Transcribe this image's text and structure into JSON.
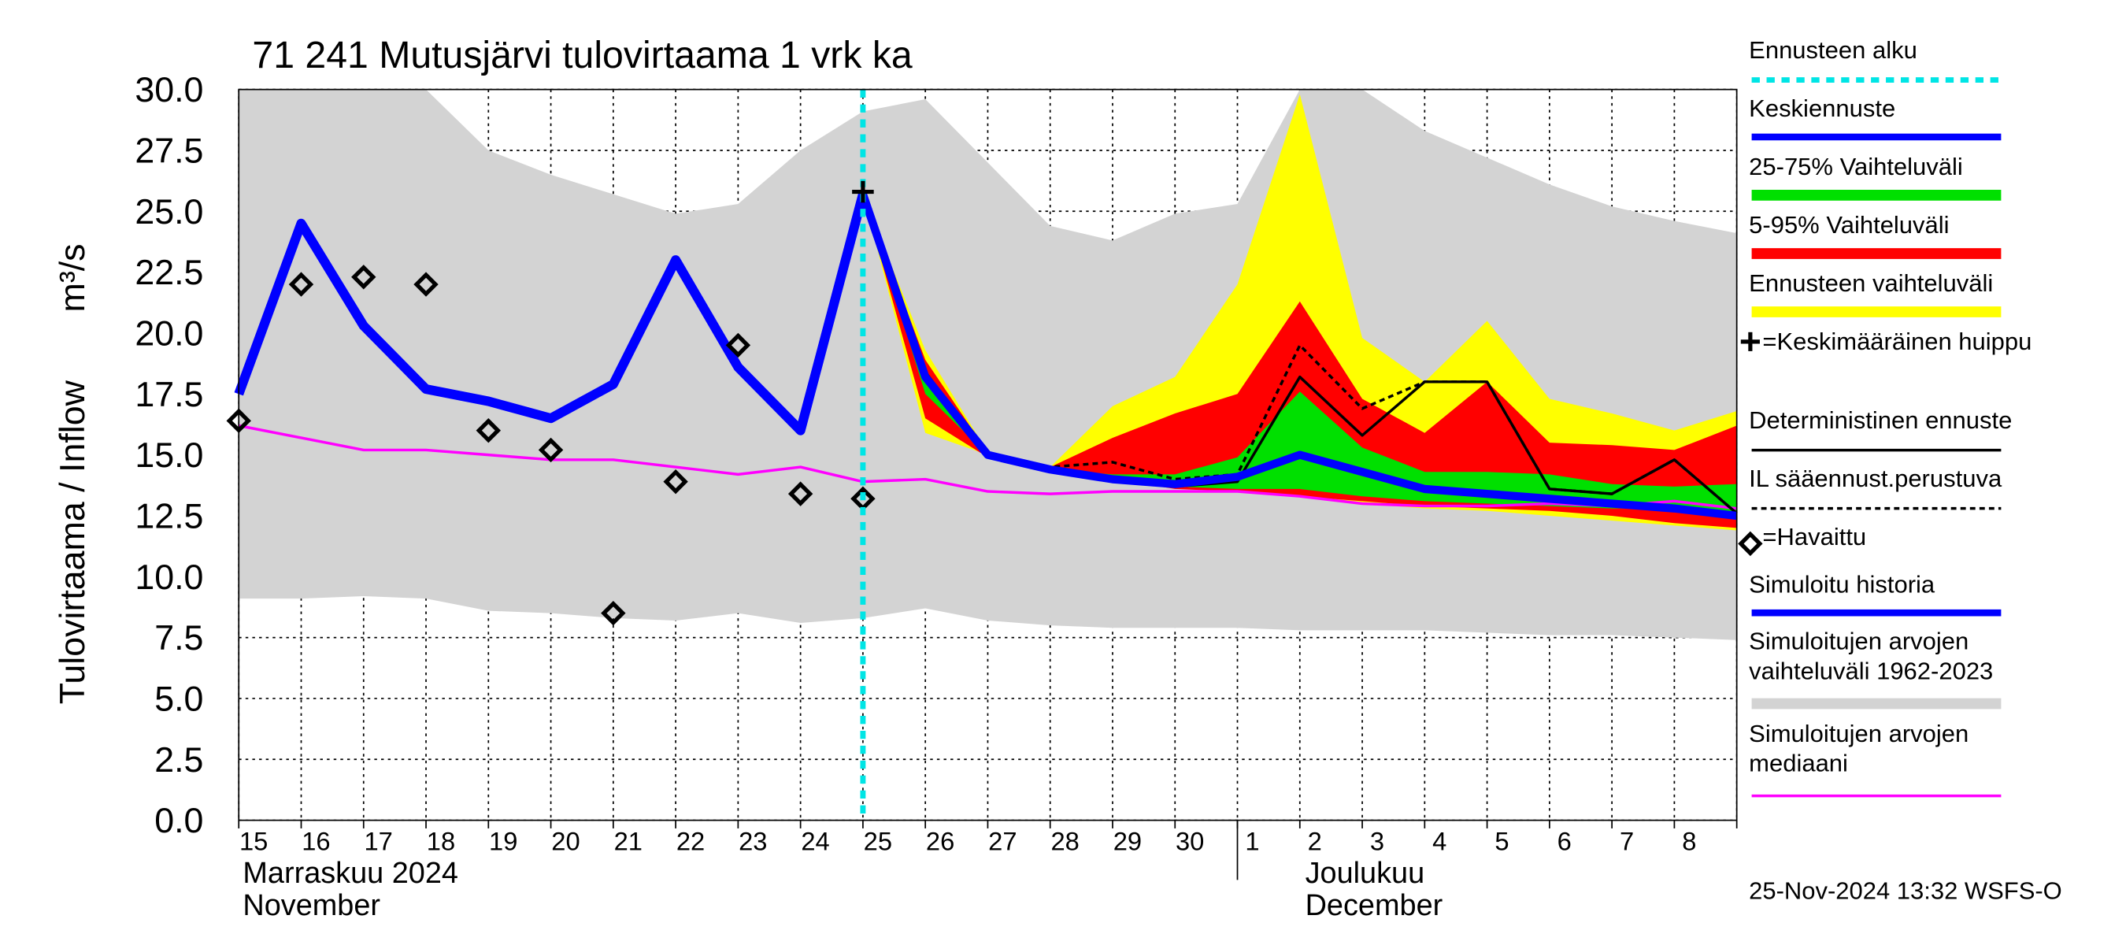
{
  "chart_data": {
    "type": "forecast",
    "title": "71 241 Mutusjärvi tulovirtaama 1 vrk ka",
    "y_label": "Tulovirtaama / Inflow",
    "y_unit": "m³/s",
    "footer": "25-Nov-2024 13:32 WSFS-O",
    "months": [
      {
        "fi": "Marraskuu 2024",
        "en": "November"
      },
      {
        "fi": "Joulukuu",
        "en": "December"
      }
    ],
    "categories": [
      "15",
      "16",
      "17",
      "18",
      "19",
      "20",
      "21",
      "22",
      "23",
      "24",
      "25",
      "26",
      "27",
      "28",
      "29",
      "30",
      "1",
      "2",
      "3",
      "4",
      "5",
      "6",
      "7",
      "8",
      null
    ],
    "ylim": [
      0,
      30
    ],
    "yticks": [
      {
        "value": 0,
        "label": "0.0"
      },
      {
        "value": 2.5,
        "label": "2.5"
      },
      {
        "value": 5,
        "label": "5.0"
      },
      {
        "value": 7.5,
        "label": "7.5"
      },
      {
        "value": 10,
        "label": "10.0"
      },
      {
        "value": 12.5,
        "label": "12.5"
      },
      {
        "value": 15,
        "label": "15.0"
      },
      {
        "value": 17.5,
        "label": "17.5"
      },
      {
        "value": 20,
        "label": "20.0"
      },
      {
        "value": 22.5,
        "label": "22.5"
      },
      {
        "value": 25,
        "label": "25.0"
      },
      {
        "value": 27.5,
        "label": "27.5"
      },
      {
        "value": 30,
        "label": "30.0"
      }
    ],
    "grid": true,
    "series": [
      {
        "name": "Ennusteen alku",
        "kind": "vline",
        "color": "#00e5e5",
        "x": 10
      },
      {
        "name": "Keskiennuste",
        "kind": "line",
        "color": "#0000ff",
        "width": 6,
        "values": [
          null,
          null,
          null,
          null,
          null,
          null,
          null,
          null,
          null,
          null,
          25.7,
          18.2,
          15.0,
          14.4,
          14.0,
          13.8,
          14.1,
          15.0,
          14.3,
          13.6,
          13.4,
          13.2,
          13.0,
          12.8,
          12.5
        ]
      },
      {
        "name": "25-75% Vaihteluväli",
        "kind": "band",
        "color": "#00e000",
        "lower": [
          null,
          null,
          null,
          null,
          null,
          null,
          null,
          null,
          null,
          null,
          25.7,
          17.5,
          15.0,
          14.4,
          13.9,
          13.7,
          13.6,
          13.6,
          13.3,
          13.1,
          13.0,
          12.9,
          12.8,
          12.8,
          12.5
        ],
        "upper": [
          null,
          null,
          null,
          null,
          null,
          null,
          null,
          null,
          null,
          null,
          25.7,
          18.0,
          15.0,
          14.4,
          14.2,
          14.2,
          14.9,
          17.6,
          15.3,
          14.3,
          14.3,
          14.2,
          13.8,
          13.7,
          13.8
        ]
      },
      {
        "name": "5-95% Vaihteluväli",
        "kind": "band",
        "color": "#ff0000",
        "lower": [
          null,
          null,
          null,
          null,
          null,
          null,
          null,
          null,
          null,
          null,
          25.7,
          16.5,
          14.9,
          14.4,
          14.0,
          13.6,
          13.5,
          13.3,
          13.1,
          12.9,
          12.8,
          12.7,
          12.5,
          12.2,
          12.0
        ],
        "upper": [
          null,
          null,
          null,
          null,
          null,
          null,
          null,
          null,
          null,
          null,
          25.7,
          18.9,
          15.1,
          14.5,
          15.7,
          16.7,
          17.5,
          21.3,
          17.3,
          15.9,
          18.0,
          15.5,
          15.4,
          15.2,
          16.2
        ]
      },
      {
        "name": "Ennusteen vaihteluväli",
        "kind": "band",
        "color": "#ffff00",
        "lower": [
          null,
          null,
          null,
          null,
          null,
          null,
          null,
          null,
          null,
          null,
          25.7,
          15.9,
          15.0,
          14.4,
          14.0,
          13.7,
          13.5,
          13.3,
          13.0,
          12.8,
          12.7,
          12.5,
          12.3,
          12.1,
          11.9
        ],
        "upper": [
          null,
          null,
          null,
          null,
          null,
          null,
          null,
          null,
          null,
          null,
          25.7,
          19.3,
          15.1,
          14.5,
          17.0,
          18.2,
          22.0,
          29.8,
          19.8,
          18.0,
          20.5,
          17.3,
          16.7,
          16.0,
          16.8
        ]
      },
      {
        "name": "=Keskimääräinen huippu",
        "kind": "peak",
        "color": "#000000",
        "x": 10,
        "value": 25.8
      },
      {
        "name": "Deterministinen ennuste",
        "kind": "line",
        "color": "#000000",
        "width": 2,
        "values": [
          null,
          null,
          null,
          null,
          null,
          null,
          null,
          null,
          null,
          null,
          25.7,
          18.4,
          15.0,
          14.4,
          14.1,
          13.7,
          13.9,
          18.2,
          15.8,
          18.0,
          18.0,
          13.6,
          13.4,
          14.8,
          12.6
        ]
      },
      {
        "name": "IL sääennust.perustuva",
        "kind": "line",
        "dashed": true,
        "color": "#000000",
        "width": 2,
        "values": [
          null,
          null,
          null,
          null,
          null,
          null,
          null,
          null,
          null,
          null,
          25.7,
          18.3,
          15.0,
          14.5,
          14.7,
          14.0,
          14.2,
          19.5,
          16.9,
          18.0,
          18.0,
          13.6,
          13.4,
          14.8,
          12.6
        ]
      },
      {
        "name": "=Havaittu",
        "kind": "marker",
        "color": "#000000",
        "values": [
          16.4,
          22.0,
          22.3,
          22.0,
          16.0,
          15.2,
          8.5,
          13.9,
          19.5,
          13.4,
          13.2,
          null,
          null,
          null,
          null,
          null,
          null,
          null,
          null,
          null,
          null,
          null,
          null,
          null,
          null
        ]
      },
      {
        "name": "Simuloitu historia",
        "kind": "line",
        "color": "#0000ff",
        "width": 7,
        "values": [
          17.5,
          24.5,
          20.3,
          17.7,
          17.2,
          16.5,
          17.9,
          23.0,
          18.6,
          16.0,
          25.7,
          null,
          null,
          null,
          null,
          null,
          null,
          null,
          null,
          null,
          null,
          null,
          null,
          null,
          null
        ]
      },
      {
        "name": "Simuloitujen arvojen vaihteluväli 1962-2023",
        "kind": "band",
        "color": "#d3d3d3",
        "lower": [
          9.1,
          9.1,
          9.2,
          9.1,
          8.6,
          8.5,
          8.3,
          8.2,
          8.5,
          8.1,
          8.3,
          8.7,
          8.2,
          8.0,
          7.9,
          7.9,
          7.9,
          7.8,
          7.8,
          7.8,
          7.7,
          7.6,
          7.6,
          7.5,
          7.4
        ],
        "upper": [
          30,
          30,
          30,
          30,
          27.5,
          26.5,
          25.7,
          24.9,
          25.3,
          27.5,
          29.1,
          29.6,
          27.0,
          24.4,
          23.8,
          24.9,
          25.3,
          30,
          30,
          28.3,
          27.2,
          26.1,
          25.2,
          24.6,
          24.1
        ]
      },
      {
        "name": "Simuloitujen arvojen mediaani",
        "kind": "line",
        "color": "#ff00ff",
        "width": 2,
        "values": [
          16.2,
          15.7,
          15.2,
          15.2,
          15.0,
          14.8,
          14.8,
          14.5,
          14.2,
          14.5,
          13.9,
          14.0,
          13.5,
          13.4,
          13.5,
          13.5,
          13.5,
          13.3,
          13.0,
          12.9,
          12.9,
          13.0,
          12.9,
          13.1,
          12.8
        ]
      }
    ]
  }
}
